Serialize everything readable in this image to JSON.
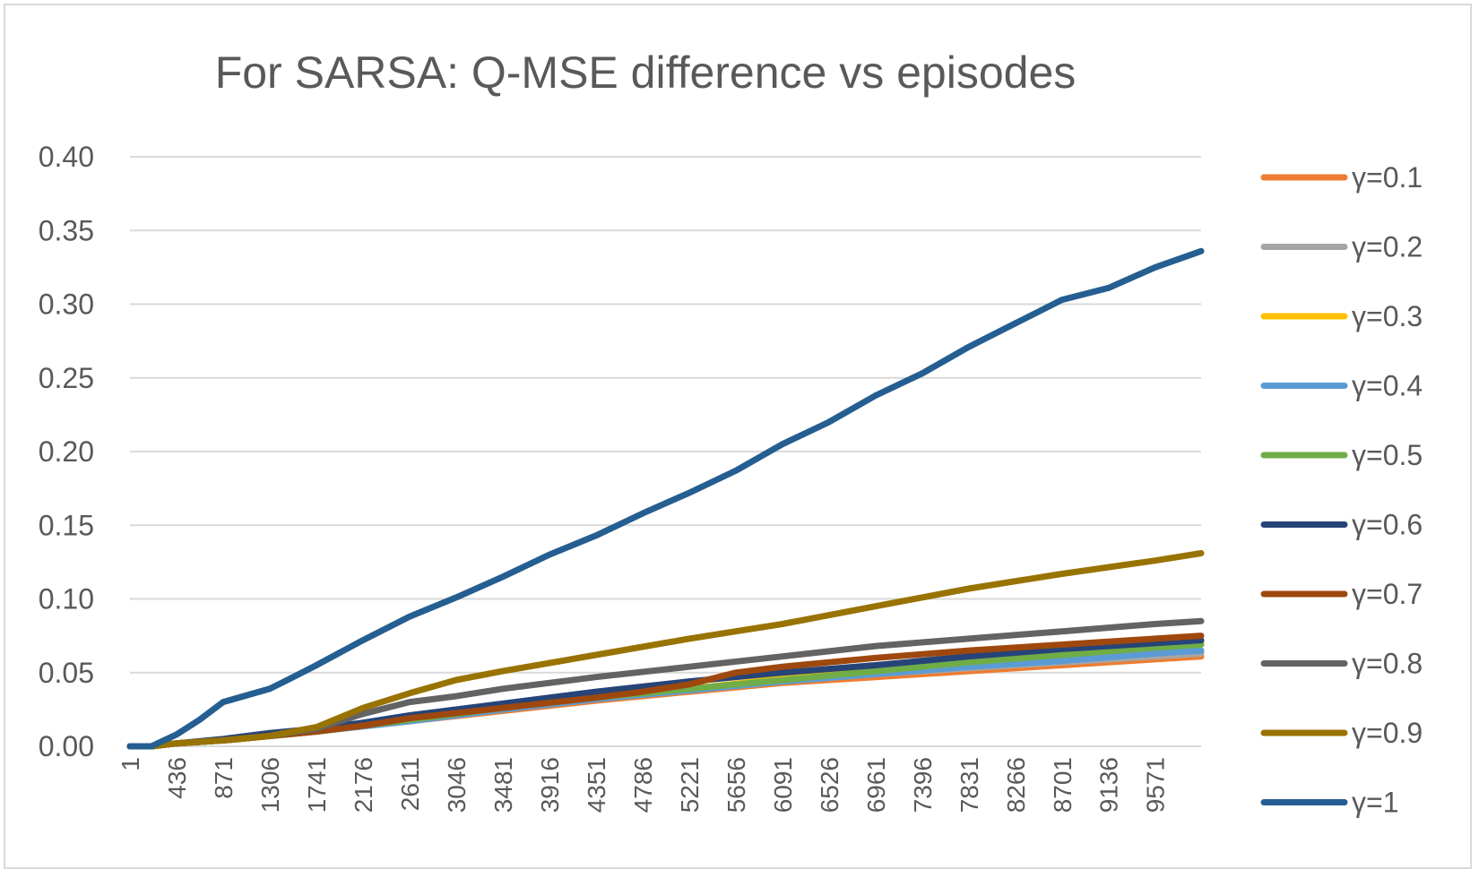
{
  "chart_data": {
    "type": "line",
    "title": "For SARSA: Q-MSE difference vs episodes",
    "xlabel": "",
    "ylabel": "",
    "xlim": [
      1,
      10000
    ],
    "ylim": [
      0,
      0.4
    ],
    "y_ticks": [
      "0.00",
      "0.05",
      "0.10",
      "0.15",
      "0.20",
      "0.25",
      "0.30",
      "0.35",
      "0.40"
    ],
    "x_ticks": [
      "1",
      "436",
      "871",
      "1306",
      "1741",
      "2176",
      "2611",
      "3046",
      "3481",
      "3916",
      "4351",
      "4786",
      "5221",
      "5656",
      "6091",
      "6526",
      "6961",
      "7396",
      "7831",
      "8266",
      "8701",
      "9136",
      "9571"
    ],
    "grid": true,
    "legend_position": "right",
    "series": [
      {
        "name": "γ=0.1",
        "color": "#ED7D31",
        "x": [
          1,
          200,
          436,
          871,
          1306,
          1741,
          2611,
          3481,
          4351,
          5221,
          6091,
          6961,
          7831,
          8701,
          9571,
          10000
        ],
        "values": [
          0,
          0,
          0.002,
          0.004,
          0.007,
          0.01,
          0.017,
          0.024,
          0.031,
          0.037,
          0.043,
          0.047,
          0.051,
          0.055,
          0.059,
          0.061
        ]
      },
      {
        "name": "γ=0.2",
        "color": "#A5A5A5",
        "x": [
          1,
          200,
          436,
          871,
          1306,
          1741,
          2611,
          3481,
          4351,
          5221,
          6091,
          6961,
          7831,
          8701,
          9571,
          10000
        ],
        "values": [
          0,
          0,
          0.002,
          0.004,
          0.007,
          0.01,
          0.017,
          0.025,
          0.032,
          0.038,
          0.044,
          0.049,
          0.053,
          0.057,
          0.061,
          0.063
        ]
      },
      {
        "name": "γ=0.3",
        "color": "#FFC000",
        "x": [
          1,
          200,
          436,
          871,
          1306,
          1741,
          2611,
          3481,
          4351,
          5221,
          6091,
          6961,
          7831,
          8701,
          9571,
          10000
        ],
        "values": [
          0,
          0,
          0.002,
          0.004,
          0.007,
          0.01,
          0.018,
          0.026,
          0.033,
          0.039,
          0.046,
          0.052,
          0.058,
          0.063,
          0.068,
          0.07
        ]
      },
      {
        "name": "γ=0.4",
        "color": "#5B9BD5",
        "x": [
          1,
          200,
          436,
          871,
          1306,
          1741,
          2611,
          3481,
          4351,
          5221,
          6091,
          6961,
          7831,
          8701,
          9571,
          10000
        ],
        "values": [
          0,
          0,
          0.002,
          0.004,
          0.007,
          0.01,
          0.017,
          0.025,
          0.032,
          0.038,
          0.044,
          0.049,
          0.054,
          0.058,
          0.063,
          0.065
        ]
      },
      {
        "name": "γ=0.5",
        "color": "#70AD47",
        "x": [
          1,
          200,
          436,
          871,
          1306,
          1741,
          2611,
          3481,
          4351,
          5221,
          6091,
          6961,
          7831,
          8701,
          9571,
          10000
        ],
        "values": [
          0,
          0,
          0.002,
          0.004,
          0.007,
          0.01,
          0.018,
          0.026,
          0.033,
          0.039,
          0.045,
          0.051,
          0.057,
          0.062,
          0.067,
          0.069
        ]
      },
      {
        "name": "γ=0.6",
        "color": "#264478",
        "x": [
          1,
          200,
          436,
          871,
          1306,
          1741,
          2176,
          2611,
          3481,
          4351,
          5221,
          6091,
          6961,
          7831,
          8701,
          9571,
          10000
        ],
        "values": [
          0,
          0,
          0.002,
          0.005,
          0.009,
          0.012,
          0.016,
          0.021,
          0.029,
          0.037,
          0.044,
          0.05,
          0.055,
          0.061,
          0.066,
          0.07,
          0.072
        ]
      },
      {
        "name": "γ=0.7",
        "color": "#9E480E",
        "x": [
          1,
          200,
          436,
          871,
          1306,
          1741,
          2176,
          2611,
          3481,
          4351,
          4786,
          5221,
          5656,
          6091,
          6961,
          7831,
          8701,
          9571,
          10000
        ],
        "values": [
          0,
          0,
          0.002,
          0.004,
          0.007,
          0.01,
          0.014,
          0.019,
          0.026,
          0.033,
          0.037,
          0.042,
          0.05,
          0.054,
          0.06,
          0.065,
          0.069,
          0.073,
          0.075
        ]
      },
      {
        "name": "γ=0.8",
        "color": "#636363",
        "x": [
          1,
          200,
          436,
          871,
          1306,
          1741,
          2176,
          2611,
          3046,
          3481,
          4351,
          5221,
          6091,
          6961,
          7831,
          8701,
          9571,
          10000
        ],
        "values": [
          0,
          0,
          0.002,
          0.004,
          0.007,
          0.012,
          0.022,
          0.03,
          0.034,
          0.039,
          0.047,
          0.054,
          0.061,
          0.068,
          0.073,
          0.078,
          0.083,
          0.085
        ]
      },
      {
        "name": "γ=0.9",
        "color": "#997300",
        "x": [
          1,
          200,
          436,
          871,
          1306,
          1741,
          2176,
          2611,
          3046,
          3481,
          4351,
          5221,
          5656,
          6091,
          6961,
          7831,
          8701,
          9571,
          10000
        ],
        "values": [
          0,
          0,
          0.002,
          0.004,
          0.007,
          0.013,
          0.026,
          0.036,
          0.045,
          0.051,
          0.062,
          0.073,
          0.078,
          0.083,
          0.095,
          0.107,
          0.117,
          0.126,
          0.131
        ]
      },
      {
        "name": "γ=1",
        "color": "#255E91",
        "x": [
          1,
          200,
          436,
          650,
          871,
          1306,
          1500,
          1741,
          2176,
          2611,
          3046,
          3481,
          3916,
          4351,
          4786,
          5221,
          5656,
          6091,
          6526,
          6961,
          7396,
          7831,
          8266,
          8701,
          9136,
          9571,
          10000
        ],
        "values": [
          0,
          0,
          0.008,
          0.018,
          0.03,
          0.039,
          0.046,
          0.055,
          0.072,
          0.088,
          0.101,
          0.115,
          0.13,
          0.143,
          0.158,
          0.172,
          0.187,
          0.205,
          0.22,
          0.238,
          0.253,
          0.271,
          0.287,
          0.303,
          0.311,
          0.325,
          0.336
        ]
      }
    ]
  }
}
